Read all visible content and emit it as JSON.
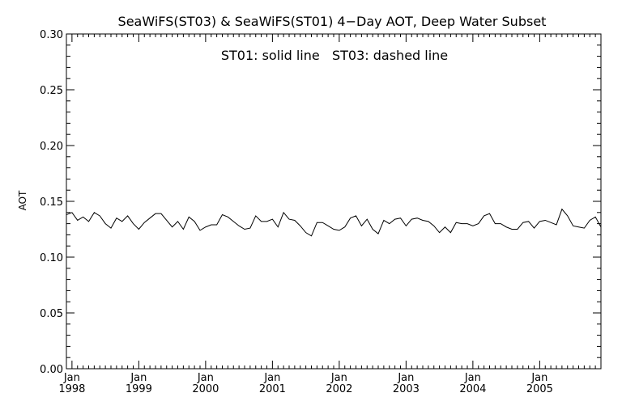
{
  "chart_data": {
    "type": "line",
    "title": "SeaWiFS(ST03) & SeaWiFS(ST01) 4−Day AOT, Deep Water Subset",
    "annotation": "ST01: solid line   ST03: dashed line",
    "xlabel": "",
    "ylabel": "AOT",
    "ylim": [
      0.0,
      0.3
    ],
    "yticks": [
      "0.00",
      "0.05",
      "0.10",
      "0.15",
      "0.20",
      "0.25",
      "0.30"
    ],
    "xlim": [
      "1997-12",
      "2005-12"
    ],
    "xticks": [
      {
        "month": "Jan",
        "year": "1998"
      },
      {
        "month": "Jan",
        "year": "1999"
      },
      {
        "month": "Jan",
        "year": "2000"
      },
      {
        "month": "Jan",
        "year": "2001"
      },
      {
        "month": "Jan",
        "year": "2002"
      },
      {
        "month": "Jan",
        "year": "2003"
      },
      {
        "month": "Jan",
        "year": "2004"
      },
      {
        "month": "Jan",
        "year": "2005"
      }
    ],
    "grid": false,
    "colors": {
      "line": "#000000",
      "axes": "#000000",
      "background": "#ffffff"
    },
    "series": [
      {
        "name": "ST01",
        "style": "solid",
        "x": [
          "1997-12",
          "1998-01",
          "1998-02",
          "1998-03",
          "1998-04",
          "1998-05",
          "1998-06",
          "1998-07",
          "1998-08",
          "1998-09",
          "1998-10",
          "1998-11",
          "1998-12",
          "1999-01",
          "1999-02",
          "1999-03",
          "1999-04",
          "1999-05",
          "1999-06",
          "1999-07",
          "1999-08",
          "1999-09",
          "1999-10",
          "1999-11",
          "1999-12",
          "2000-01",
          "2000-02",
          "2000-03",
          "2000-04",
          "2000-05",
          "2000-06",
          "2000-07",
          "2000-08",
          "2000-09",
          "2000-10",
          "2000-11",
          "2000-12",
          "2001-01",
          "2001-02",
          "2001-03",
          "2001-04",
          "2001-05",
          "2001-06",
          "2001-07",
          "2001-08",
          "2001-09",
          "2001-10",
          "2001-11",
          "2001-12",
          "2002-01",
          "2002-02",
          "2002-03",
          "2002-04",
          "2002-05",
          "2002-06",
          "2002-07",
          "2002-08",
          "2002-09",
          "2002-10",
          "2002-11",
          "2002-12",
          "2003-01",
          "2003-02",
          "2003-03",
          "2003-04",
          "2003-05",
          "2003-06",
          "2003-07",
          "2003-08",
          "2003-09",
          "2003-10",
          "2003-11",
          "2003-12",
          "2004-01",
          "2004-02",
          "2004-03",
          "2004-04",
          "2004-05",
          "2004-06",
          "2004-07",
          "2004-08",
          "2004-09",
          "2004-10",
          "2004-11",
          "2004-12",
          "2005-01",
          "2005-02",
          "2005-03",
          "2005-04",
          "2005-05",
          "2005-06",
          "2005-07",
          "2005-08",
          "2005-09",
          "2005-10",
          "2005-11",
          "2005-12"
        ],
        "values": [
          0.138,
          0.14,
          0.133,
          0.136,
          0.132,
          0.14,
          0.137,
          0.13,
          0.126,
          0.135,
          0.132,
          0.137,
          0.13,
          0.125,
          0.131,
          0.135,
          0.139,
          0.139,
          0.133,
          0.127,
          0.132,
          0.125,
          0.136,
          0.132,
          0.124,
          0.127,
          0.129,
          0.129,
          0.138,
          0.136,
          0.132,
          0.128,
          0.125,
          0.126,
          0.137,
          0.132,
          0.132,
          0.134,
          0.127,
          0.14,
          0.134,
          0.133,
          0.128,
          0.122,
          0.119,
          0.131,
          0.131,
          0.128,
          0.125,
          0.124,
          0.127,
          0.135,
          0.137,
          0.128,
          0.134,
          0.125,
          0.121,
          0.133,
          0.13,
          0.134,
          0.135,
          0.128,
          0.134,
          0.135,
          0.133,
          0.132,
          0.128,
          0.122,
          0.127,
          0.122,
          0.131,
          0.13,
          0.13,
          0.128,
          0.13,
          0.137,
          0.139,
          0.13,
          0.13,
          0.127,
          0.125,
          0.125,
          0.131,
          0.132,
          0.126,
          0.132,
          0.133,
          0.131,
          0.129,
          0.143,
          0.137,
          0.128,
          0.127,
          0.126,
          0.133,
          0.136,
          0.127
        ]
      }
    ]
  }
}
